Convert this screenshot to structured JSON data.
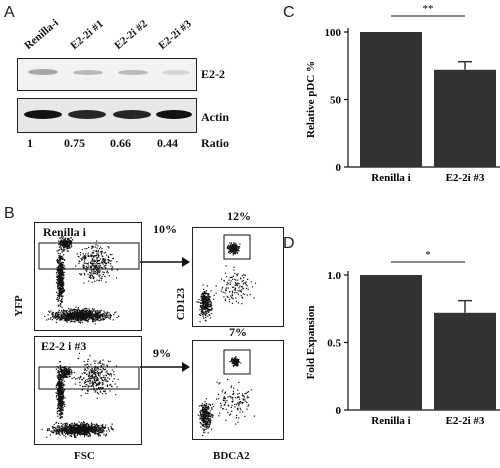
{
  "panels": {
    "a": "A",
    "b": "B",
    "c": "C",
    "d": "D"
  },
  "western": {
    "lanes": [
      "Renilla-i",
      "E2-2i #1",
      "E2-2i #2",
      "E2-2i #3"
    ],
    "blots": [
      {
        "label": "E2-2",
        "intensities": [
          0.55,
          0.4,
          0.4,
          0.2
        ]
      },
      {
        "label": "Actin",
        "intensities": [
          1,
          0.95,
          0.95,
          1
        ]
      }
    ],
    "ratios": [
      "1",
      "0.75",
      "0.66",
      "0.44"
    ],
    "ratio_label": "Ratio"
  },
  "facs": {
    "left_titles": [
      "Renilla i",
      "E2-2 i #3"
    ],
    "left_pcts": [
      "10%",
      "9%"
    ],
    "right_pcts": [
      "12%",
      "7%"
    ],
    "x_left": "FSC",
    "y_left": "YFP",
    "x_right": "BDCA2",
    "y_right": "CD123"
  },
  "chart_data": [
    {
      "type": "bar",
      "categories": [
        "Renilla i",
        "E2-2i #3"
      ],
      "values": [
        100,
        72
      ],
      "errors": [
        0,
        6
      ],
      "ylabel": "Relative pDC %",
      "ylim": [
        0,
        100
      ],
      "yticks": [
        "0",
        "50",
        "100"
      ],
      "significance": "**",
      "bar_color": "#333333"
    },
    {
      "type": "bar",
      "categories": [
        "Renilla i",
        "E2-2i #3"
      ],
      "values": [
        1.0,
        0.72
      ],
      "errors": [
        0,
        0.09
      ],
      "ylabel": "Fold Expansion",
      "ylim": [
        0,
        1.0
      ],
      "yticks": [
        "0",
        "0.5",
        "1.0"
      ],
      "significance": "*",
      "bar_color": "#333333"
    }
  ]
}
